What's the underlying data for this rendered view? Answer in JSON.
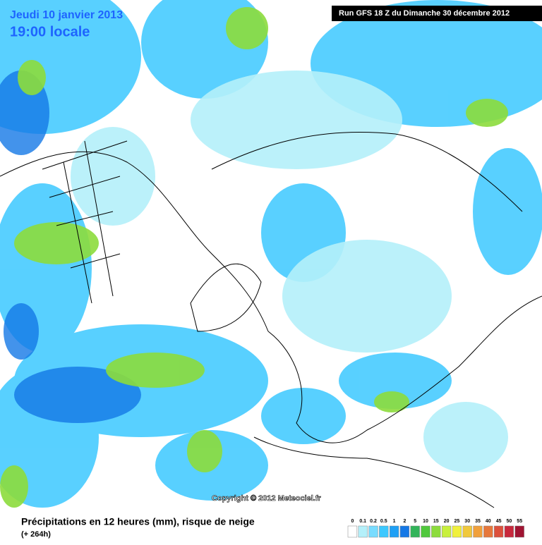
{
  "header": {
    "date": "Jeudi 10 janvier 2013",
    "time": "19:00 locale",
    "run": "Run GFS 18 Z du Dimanche 30 décembre 2012"
  },
  "copyright": "Copyright © 2012 Meteociel.fr",
  "footer": {
    "title": "Précipitations en 12 heures (mm), risque de neige",
    "subtitle": "(+ 264h)"
  },
  "legend": {
    "labels": [
      0,
      0.1,
      0.2,
      0.5,
      1,
      2,
      5,
      10,
      15,
      20,
      25,
      30,
      35,
      40,
      45,
      50,
      55
    ],
    "colors": [
      "#ffffff",
      "#b4f0fa",
      "#78dcff",
      "#3cc8ff",
      "#1ea0f5",
      "#1478e6",
      "#32b45a",
      "#50c83c",
      "#8cdc3c",
      "#c8f03c",
      "#f0f03c",
      "#f0c83c",
      "#f0a03c",
      "#e6783c",
      "#dc503c",
      "#c8283c",
      "#a01432"
    ]
  }
}
